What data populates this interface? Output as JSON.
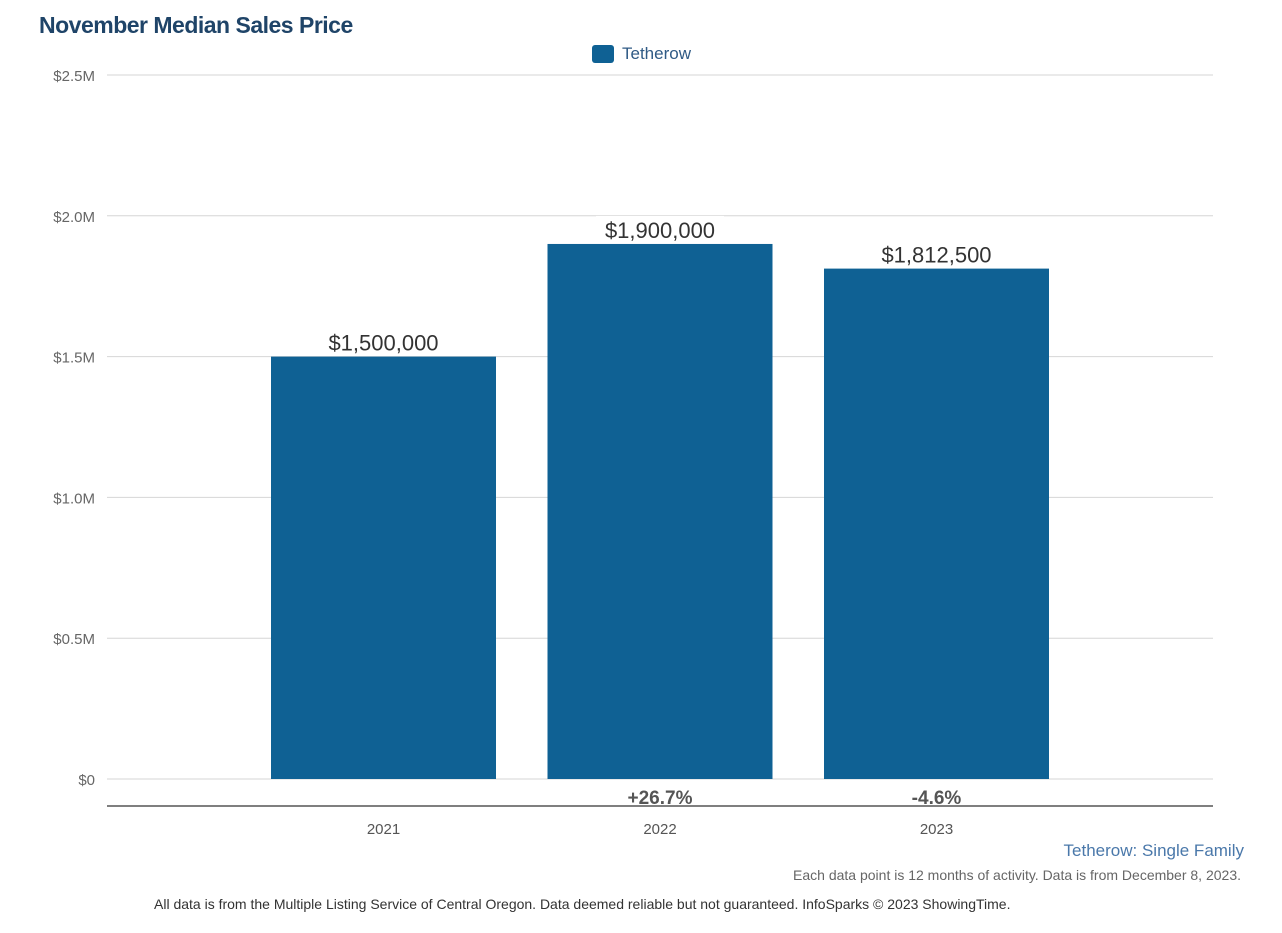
{
  "chart_data": {
    "type": "bar",
    "title": "November Median Sales Price",
    "categories": [
      "2021",
      "2022",
      "2023"
    ],
    "series": [
      {
        "name": "Tetherow",
        "values": [
          1500000,
          1900000,
          1812500
        ],
        "color": "#0f6194"
      }
    ],
    "data_labels": [
      "$1,500,000",
      "$1,900,000",
      "$1,812,500"
    ],
    "change_labels": [
      "",
      "+26.7%",
      "-4.6%"
    ],
    "yticks": [
      0,
      500000,
      1000000,
      1500000,
      2000000,
      2500000
    ],
    "ytick_labels": [
      "$0",
      "$0.5M",
      "$1.0M",
      "$1.5M",
      "$2.0M",
      "$2.5M"
    ],
    "ylim": [
      0,
      2500000
    ],
    "grid": true,
    "legend_position": "top-center"
  },
  "subtitle": "Tetherow: Single Family",
  "note": "Each data point is 12 months of activity. Data is from December 8, 2023.",
  "footer": "All data is from the Multiple Listing Service of Central Oregon. Data deemed reliable but not guaranteed. InfoSparks © 2023 ShowingTime."
}
